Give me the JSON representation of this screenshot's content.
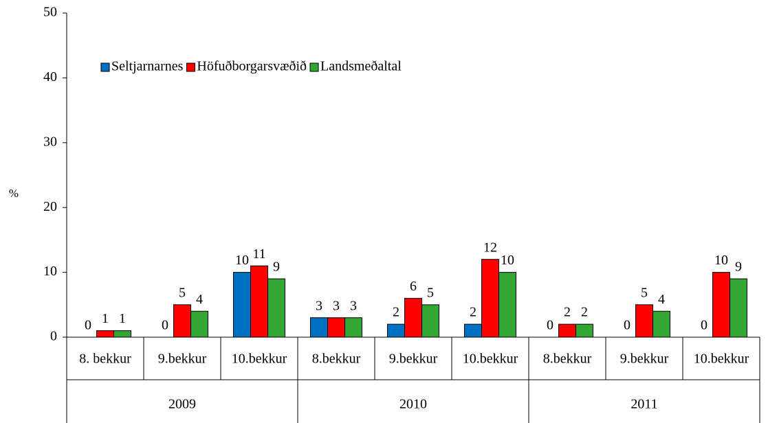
{
  "chart_data": {
    "type": "bar",
    "categories": [
      "8. bekkur",
      "9.bekkur",
      "10.bekkur",
      "8.bekkur",
      "9.bekkur",
      "10.bekkur",
      "8.bekkur",
      "9.bekkur",
      "10.bekkur"
    ],
    "category_groups": [
      "2009",
      "2010",
      "2011"
    ],
    "ylabel": "%",
    "ylim": [
      0,
      50
    ],
    "yticks": [
      0,
      10,
      20,
      30,
      40,
      50
    ],
    "legend": "upper left",
    "series": [
      {
        "name": "Seltjarnarnes",
        "color": "#0070c0",
        "values": [
          0,
          0,
          10,
          3,
          2,
          2,
          0,
          0,
          0
        ]
      },
      {
        "name": "Höfuðborgarsvæðið",
        "color": "#ff0000",
        "values": [
          1,
          5,
          11,
          3,
          6,
          12,
          2,
          5,
          10
        ]
      },
      {
        "name": "Landsmeðaltal",
        "color": "#33a532",
        "values": [
          1,
          4,
          9,
          3,
          5,
          10,
          2,
          4,
          9
        ]
      }
    ]
  }
}
